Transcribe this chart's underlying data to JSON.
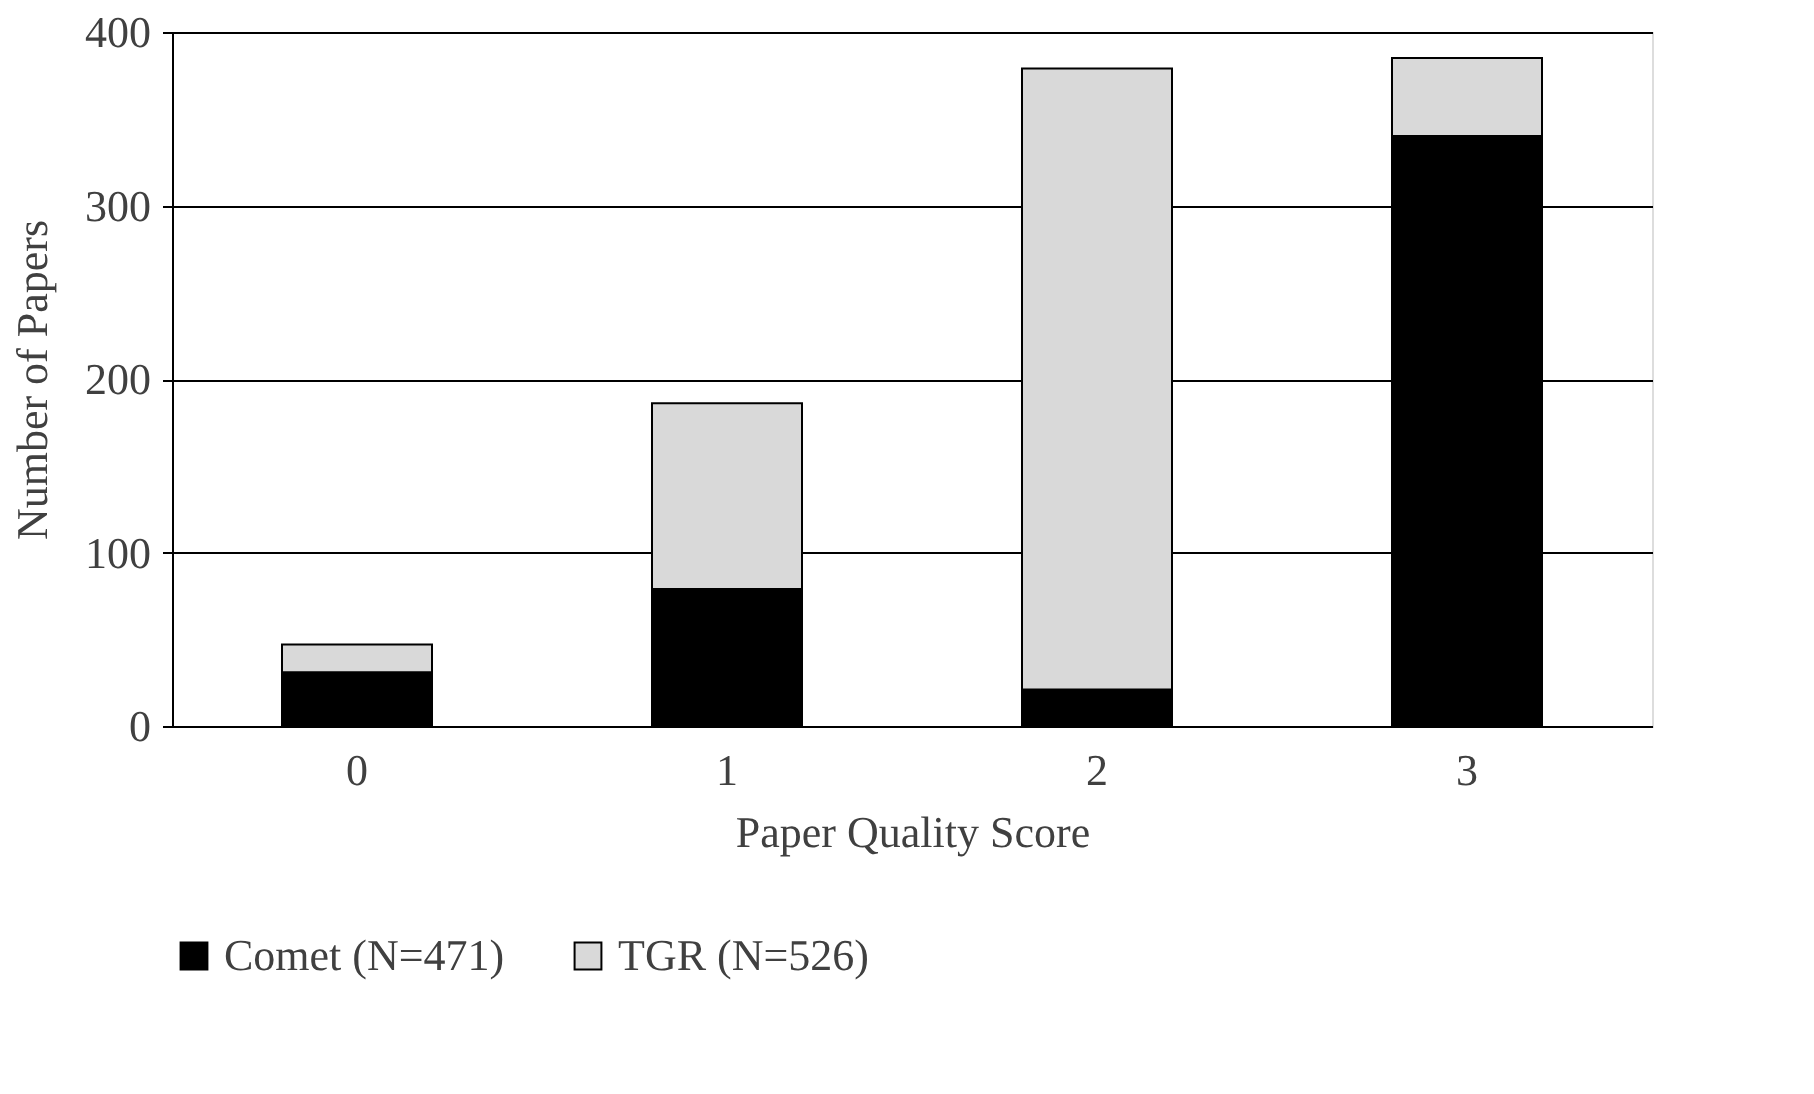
{
  "chart_data": {
    "type": "bar",
    "stacked": true,
    "xlabel": "Paper Quality Score",
    "ylabel": "Number of Papers",
    "categories": [
      "0",
      "1",
      "2",
      "3"
    ],
    "series": [
      {
        "name": "Comet (N=471)",
        "color": "#000000",
        "values": [
          31,
          79,
          21,
          340
        ]
      },
      {
        "name": "TGR (N=526)",
        "color": "#d9d9d9",
        "values": [
          16,
          107,
          358,
          45
        ]
      }
    ],
    "ylim": [
      0,
      400
    ],
    "yticks": [
      0,
      100,
      200,
      300,
      400
    ],
    "grid": "y",
    "legend": "bottom"
  }
}
